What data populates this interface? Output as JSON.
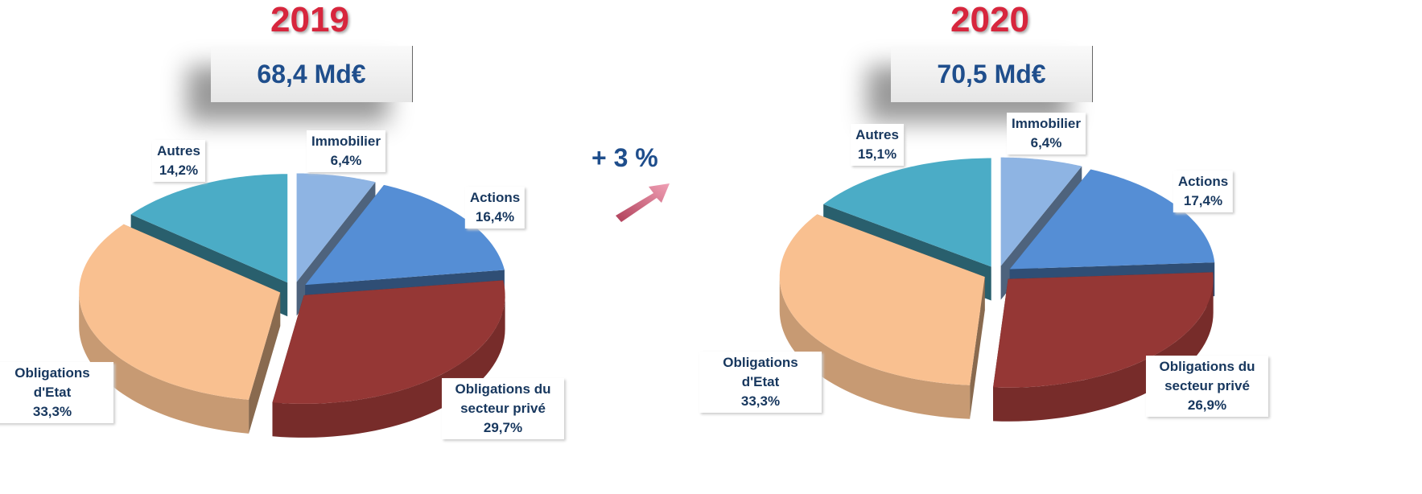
{
  "annotation": "+ 3 %",
  "chart_data": [
    {
      "type": "pie3d",
      "title": "2019",
      "subtitle": "68,4 Md€",
      "categories": [
        "Immobilier",
        "Actions",
        "Obligations du secteur privé",
        "Obligations d'Etat",
        "Autres"
      ],
      "values": [
        6.4,
        16.4,
        29.7,
        33.3,
        14.2
      ],
      "value_labels": [
        "6,4%",
        "16,4%",
        "29,7%",
        "33,3%",
        "14,2%"
      ],
      "colors": [
        "#8eb4e3",
        "#558ed5",
        "#953735",
        "#f9c090",
        "#4bacc6"
      ]
    },
    {
      "type": "pie3d",
      "title": "2020",
      "subtitle": "70,5 Md€",
      "categories": [
        "Immobilier",
        "Actions",
        "Obligations du secteur privé",
        "Obligations d'Etat",
        "Autres"
      ],
      "values": [
        6.4,
        17.4,
        26.9,
        33.3,
        15.1
      ],
      "value_labels": [
        "6,4%",
        "17,4%",
        "26,9%",
        "33,3%",
        "15,1%"
      ],
      "colors": [
        "#8eb4e3",
        "#558ed5",
        "#953735",
        "#f9c090",
        "#4bacc6"
      ]
    }
  ]
}
